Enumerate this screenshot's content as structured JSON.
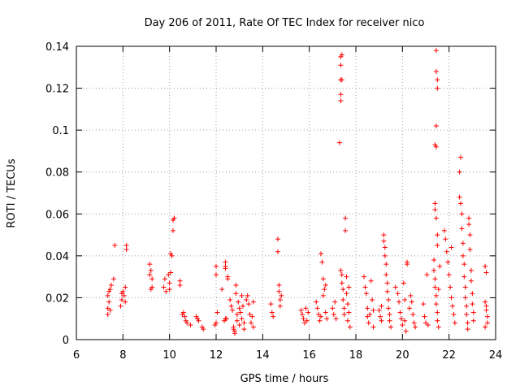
{
  "chart_data": {
    "type": "scatter",
    "title": "Day 206 of 2011, Rate Of TEC Index for receiver nico",
    "xlabel": "GPS time / hours",
    "ylabel": "ROTI / TECUs",
    "xlim": [
      6,
      24
    ],
    "ylim": [
      0,
      0.14
    ],
    "xticks": [
      6,
      8,
      10,
      12,
      14,
      16,
      18,
      20,
      22,
      24
    ],
    "yticks": [
      0,
      0.02,
      0.04,
      0.06,
      0.08,
      0.1,
      0.12,
      0.14
    ],
    "xtick_labels": [
      "6",
      "8",
      "10",
      "12",
      "14",
      "16",
      "18",
      "20",
      "22",
      "24"
    ],
    "ytick_labels": [
      "0",
      "0.02",
      "0.04",
      "0.06",
      "0.08",
      "0.1",
      "0.12",
      "0.14"
    ],
    "grid": true,
    "marker": "plus",
    "color": "#ff0000",
    "series": [
      {
        "points": [
          [
            7.35,
            0.012
          ],
          [
            7.35,
            0.015
          ],
          [
            7.35,
            0.021
          ],
          [
            7.4,
            0.023
          ],
          [
            7.4,
            0.018
          ],
          [
            7.45,
            0.024
          ],
          [
            7.45,
            0.014
          ],
          [
            7.5,
            0.026
          ],
          [
            7.6,
            0.029
          ],
          [
            7.65,
            0.045
          ],
          [
            7.9,
            0.016
          ],
          [
            7.95,
            0.019
          ],
          [
            7.95,
            0.022
          ],
          [
            8.0,
            0.023
          ],
          [
            8.05,
            0.021
          ],
          [
            8.1,
            0.018
          ],
          [
            8.1,
            0.025
          ],
          [
            8.15,
            0.043
          ],
          [
            8.15,
            0.045
          ],
          [
            9.15,
            0.036
          ],
          [
            9.15,
            0.031
          ],
          [
            9.2,
            0.033
          ],
          [
            9.2,
            0.024
          ],
          [
            9.25,
            0.025
          ],
          [
            9.25,
            0.029
          ],
          [
            9.75,
            0.025
          ],
          [
            9.8,
            0.029
          ],
          [
            9.85,
            0.023
          ],
          [
            9.95,
            0.031
          ],
          [
            10.0,
            0.027
          ],
          [
            10.0,
            0.024
          ],
          [
            10.05,
            0.032
          ],
          [
            10.05,
            0.041
          ],
          [
            10.1,
            0.04
          ],
          [
            10.15,
            0.052
          ],
          [
            10.15,
            0.057
          ],
          [
            10.2,
            0.058
          ],
          [
            10.2,
            0.058
          ],
          [
            10.45,
            0.028
          ],
          [
            10.45,
            0.026
          ],
          [
            10.55,
            0.012
          ],
          [
            10.6,
            0.013
          ],
          [
            10.65,
            0.011
          ],
          [
            10.7,
            0.009
          ],
          [
            10.75,
            0.008
          ],
          [
            10.9,
            0.007
          ],
          [
            11.15,
            0.011
          ],
          [
            11.2,
            0.01
          ],
          [
            11.25,
            0.009
          ],
          [
            11.4,
            0.006
          ],
          [
            11.45,
            0.005
          ],
          [
            11.95,
            0.007
          ],
          [
            12.0,
            0.008
          ],
          [
            12.05,
            0.013
          ],
          [
            12.0,
            0.031
          ],
          [
            12.0,
            0.035
          ],
          [
            12.25,
            0.024
          ],
          [
            12.35,
            0.009
          ],
          [
            12.4,
            0.01
          ],
          [
            12.45,
            0.01
          ],
          [
            12.4,
            0.035
          ],
          [
            12.4,
            0.037
          ],
          [
            12.4,
            0.034
          ],
          [
            12.5,
            0.03
          ],
          [
            12.5,
            0.029
          ],
          [
            12.6,
            0.019
          ],
          [
            12.65,
            0.016
          ],
          [
            12.7,
            0.014
          ],
          [
            12.75,
            0.006
          ],
          [
            12.75,
            0.005
          ],
          [
            12.8,
            0.004
          ],
          [
            12.8,
            0.003
          ],
          [
            12.85,
            0.022
          ],
          [
            12.85,
            0.026
          ],
          [
            12.9,
            0.012
          ],
          [
            12.9,
            0.009
          ],
          [
            12.95,
            0.018
          ],
          [
            13.0,
            0.015
          ],
          [
            13.0,
            0.007
          ],
          [
            13.05,
            0.013
          ],
          [
            13.1,
            0.021
          ],
          [
            13.1,
            0.01
          ],
          [
            13.15,
            0.016
          ],
          [
            13.2,
            0.008
          ],
          [
            13.2,
            0.005
          ],
          [
            13.3,
            0.019
          ],
          [
            13.35,
            0.021
          ],
          [
            13.4,
            0.017
          ],
          [
            13.45,
            0.012
          ],
          [
            13.5,
            0.008
          ],
          [
            13.55,
            0.011
          ],
          [
            13.6,
            0.006
          ],
          [
            13.6,
            0.018
          ],
          [
            14.35,
            0.017
          ],
          [
            14.4,
            0.013
          ],
          [
            14.45,
            0.011
          ],
          [
            14.65,
            0.048
          ],
          [
            14.65,
            0.042
          ],
          [
            14.7,
            0.026
          ],
          [
            14.7,
            0.023
          ],
          [
            14.75,
            0.019
          ],
          [
            14.75,
            0.016
          ],
          [
            14.8,
            0.021
          ],
          [
            15.65,
            0.014
          ],
          [
            15.7,
            0.012
          ],
          [
            15.75,
            0.01
          ],
          [
            15.8,
            0.008
          ],
          [
            15.85,
            0.015
          ],
          [
            15.9,
            0.009
          ],
          [
            15.95,
            0.013
          ],
          [
            16.3,
            0.018
          ],
          [
            16.35,
            0.015
          ],
          [
            16.4,
            0.012
          ],
          [
            16.45,
            0.009
          ],
          [
            16.5,
            0.011
          ],
          [
            16.5,
            0.041
          ],
          [
            16.55,
            0.037
          ],
          [
            16.6,
            0.029
          ],
          [
            16.6,
            0.021
          ],
          [
            16.65,
            0.024
          ],
          [
            16.7,
            0.026
          ],
          [
            16.7,
            0.013
          ],
          [
            16.75,
            0.01
          ],
          [
            17.0,
            0.015
          ],
          [
            17.05,
            0.012
          ],
          [
            17.1,
            0.018
          ],
          [
            17.15,
            0.01
          ],
          [
            17.35,
            0.135
          ],
          [
            17.35,
            0.131
          ],
          [
            17.35,
            0.124
          ],
          [
            17.35,
            0.117
          ],
          [
            17.35,
            0.114
          ],
          [
            17.3,
            0.094
          ],
          [
            17.4,
            0.136
          ],
          [
            17.4,
            0.124
          ],
          [
            17.35,
            0.033
          ],
          [
            17.4,
            0.031
          ],
          [
            17.4,
            0.027
          ],
          [
            17.45,
            0.024
          ],
          [
            17.45,
            0.019
          ],
          [
            17.5,
            0.015
          ],
          [
            17.5,
            0.012
          ],
          [
            17.55,
            0.058
          ],
          [
            17.55,
            0.052
          ],
          [
            17.6,
            0.03
          ],
          [
            17.6,
            0.022
          ],
          [
            17.65,
            0.017
          ],
          [
            17.65,
            0.009
          ],
          [
            17.7,
            0.025
          ],
          [
            17.7,
            0.013
          ],
          [
            17.75,
            0.006
          ],
          [
            18.35,
            0.03
          ],
          [
            18.4,
            0.025
          ],
          [
            18.45,
            0.022
          ],
          [
            18.5,
            0.015
          ],
          [
            18.5,
            0.011
          ],
          [
            18.55,
            0.008
          ],
          [
            18.6,
            0.012
          ],
          [
            18.65,
            0.028
          ],
          [
            18.7,
            0.019
          ],
          [
            18.75,
            0.014
          ],
          [
            18.75,
            0.006
          ],
          [
            19.0,
            0.014
          ],
          [
            19.05,
            0.011
          ],
          [
            19.1,
            0.009
          ],
          [
            19.1,
            0.016
          ],
          [
            19.2,
            0.05
          ],
          [
            19.2,
            0.047
          ],
          [
            19.25,
            0.044
          ],
          [
            19.25,
            0.04
          ],
          [
            19.3,
            0.036
          ],
          [
            19.3,
            0.031
          ],
          [
            19.35,
            0.027
          ],
          [
            19.35,
            0.023
          ],
          [
            19.4,
            0.019
          ],
          [
            19.4,
            0.015
          ],
          [
            19.45,
            0.012
          ],
          [
            19.45,
            0.009
          ],
          [
            19.5,
            0.006
          ],
          [
            19.7,
            0.025
          ],
          [
            19.8,
            0.022
          ],
          [
            19.85,
            0.018
          ],
          [
            19.9,
            0.013
          ],
          [
            19.95,
            0.01
          ],
          [
            20.0,
            0.007
          ],
          [
            20.05,
            0.027
          ],
          [
            20.1,
            0.019
          ],
          [
            20.1,
            0.009
          ],
          [
            20.15,
            0.004
          ],
          [
            20.2,
            0.037
          ],
          [
            20.2,
            0.036
          ],
          [
            20.3,
            0.015
          ],
          [
            20.35,
            0.021
          ],
          [
            20.4,
            0.018
          ],
          [
            20.45,
            0.012
          ],
          [
            20.5,
            0.008
          ],
          [
            20.55,
            0.006
          ],
          [
            20.9,
            0.017
          ],
          [
            20.95,
            0.011
          ],
          [
            21.0,
            0.008
          ],
          [
            21.05,
            0.031
          ],
          [
            21.1,
            0.007
          ],
          [
            21.35,
            0.038
          ],
          [
            21.35,
            0.033
          ],
          [
            21.4,
            0.029
          ],
          [
            21.4,
            0.025
          ],
          [
            21.45,
            0.021
          ],
          [
            21.45,
            0.017
          ],
          [
            21.5,
            0.013
          ],
          [
            21.5,
            0.009
          ],
          [
            21.55,
            0.006
          ],
          [
            21.55,
            0.024
          ],
          [
            21.6,
            0.035
          ],
          [
            21.45,
            0.138
          ],
          [
            21.45,
            0.128
          ],
          [
            21.5,
            0.124
          ],
          [
            21.5,
            0.12
          ],
          [
            21.45,
            0.102
          ],
          [
            21.4,
            0.093
          ],
          [
            21.45,
            0.092
          ],
          [
            21.4,
            0.065
          ],
          [
            21.4,
            0.062
          ],
          [
            21.45,
            0.058
          ],
          [
            21.5,
            0.05
          ],
          [
            21.5,
            0.045
          ],
          [
            21.8,
            0.052
          ],
          [
            21.85,
            0.048
          ],
          [
            21.9,
            0.042
          ],
          [
            21.95,
            0.037
          ],
          [
            22.0,
            0.031
          ],
          [
            22.05,
            0.025
          ],
          [
            22.1,
            0.02
          ],
          [
            22.15,
            0.016
          ],
          [
            22.2,
            0.012
          ],
          [
            22.25,
            0.008
          ],
          [
            22.1,
            0.044
          ],
          [
            22.5,
            0.087
          ],
          [
            22.45,
            0.08
          ],
          [
            22.45,
            0.068
          ],
          [
            22.5,
            0.065
          ],
          [
            22.55,
            0.06
          ],
          [
            22.55,
            0.053
          ],
          [
            22.6,
            0.046
          ],
          [
            22.6,
            0.04
          ],
          [
            22.65,
            0.036
          ],
          [
            22.65,
            0.03
          ],
          [
            22.7,
            0.025
          ],
          [
            22.7,
            0.02
          ],
          [
            22.75,
            0.016
          ],
          [
            22.75,
            0.012
          ],
          [
            22.8,
            0.008
          ],
          [
            22.8,
            0.005
          ],
          [
            22.85,
            0.058
          ],
          [
            22.85,
            0.055
          ],
          [
            22.9,
            0.05
          ],
          [
            22.9,
            0.043
          ],
          [
            22.95,
            0.033
          ],
          [
            22.95,
            0.028
          ],
          [
            23.0,
            0.022
          ],
          [
            23.0,
            0.017
          ],
          [
            23.05,
            0.013
          ],
          [
            23.05,
            0.009
          ],
          [
            23.55,
            0.035
          ],
          [
            23.6,
            0.032
          ],
          [
            23.55,
            0.018
          ],
          [
            23.6,
            0.014
          ],
          [
            23.65,
            0.011
          ],
          [
            23.65,
            0.008
          ],
          [
            23.6,
            0.016
          ],
          [
            23.55,
            0.006
          ]
        ]
      }
    ]
  }
}
